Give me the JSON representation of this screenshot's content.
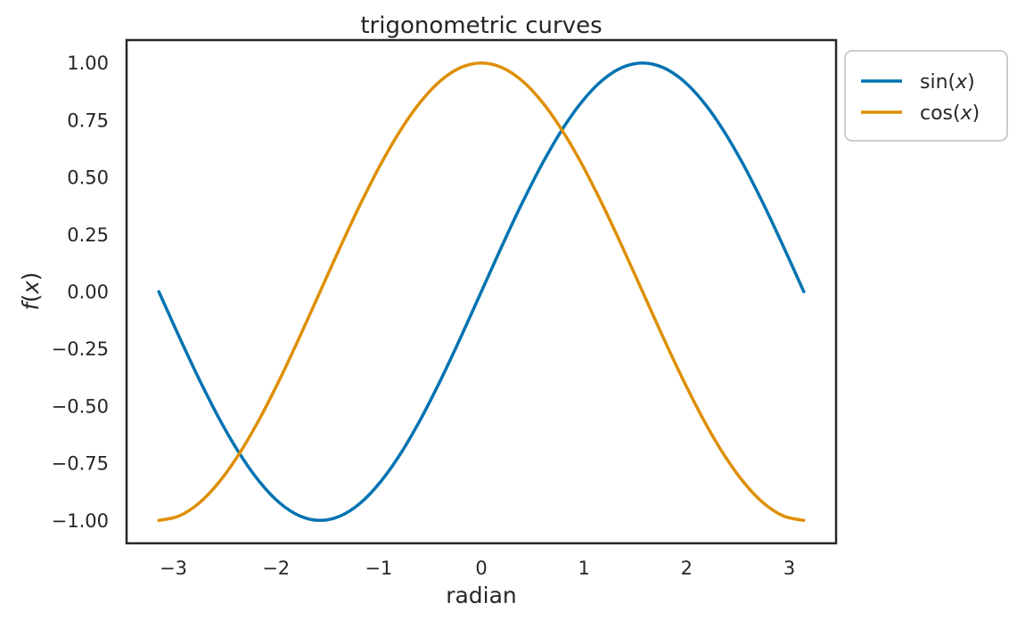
{
  "chart_data": {
    "type": "line",
    "title": "trigonometric curves",
    "xlabel": "radian",
    "ylabel": "f(x)",
    "xlim": [
      -3.456,
      3.456
    ],
    "ylim": [
      -1.1,
      1.1
    ],
    "grid": false,
    "xticks": {
      "values": [
        -3,
        -2,
        -1,
        0,
        1,
        2,
        3
      ],
      "labels": [
        "−3",
        "−2",
        "−1",
        "0",
        "1",
        "2",
        "3"
      ]
    },
    "yticks": {
      "values": [
        -1.0,
        -0.75,
        -0.5,
        -0.25,
        0.0,
        0.25,
        0.5,
        0.75,
        1.0
      ],
      "labels": [
        "−1.00",
        "−0.75",
        "−0.50",
        "−0.25",
        "0.00",
        "0.25",
        "0.50",
        "0.75",
        "1.00"
      ]
    },
    "legend": {
      "position": "upper-right-outside",
      "entries": [
        "sin(x)",
        "cos(x)"
      ]
    },
    "colors": {
      "background": "#ffffff",
      "text": "#262626",
      "spine": "#262626",
      "legend_border": "#cccccc"
    },
    "x": [
      -3.1416,
      -2.9452,
      -2.7489,
      -2.5525,
      -2.3562,
      -2.1598,
      -1.9635,
      -1.7671,
      -1.5708,
      -1.3744,
      -1.1781,
      -0.9817,
      -0.7854,
      -0.589,
      -0.3927,
      -0.1963,
      0,
      0.1963,
      0.3927,
      0.589,
      0.7854,
      0.9817,
      1.1781,
      1.3744,
      1.5708,
      1.7671,
      1.9635,
      2.1598,
      2.3562,
      2.5525,
      2.7489,
      2.9452,
      3.1416
    ],
    "series": [
      {
        "name": "sin(x)",
        "color": "#0173b2",
        "y": [
          0,
          -0.1951,
          -0.3827,
          -0.5556,
          -0.7071,
          -0.8315,
          -0.9239,
          -0.9808,
          -1,
          -0.9808,
          -0.9239,
          -0.8315,
          -0.7071,
          -0.5556,
          -0.3827,
          -0.1951,
          0,
          0.1951,
          0.3827,
          0.5556,
          0.7071,
          0.8315,
          0.9239,
          0.9808,
          1,
          0.9808,
          0.9239,
          0.8315,
          0.7071,
          0.5556,
          0.3827,
          0.1951,
          0
        ]
      },
      {
        "name": "cos(x)",
        "color": "#de8f05",
        "y": [
          -1,
          -0.9808,
          -0.9239,
          -0.8315,
          -0.7071,
          -0.5556,
          -0.3827,
          -0.1951,
          0,
          0.1951,
          0.3827,
          0.5556,
          0.7071,
          0.8315,
          0.9239,
          0.9808,
          1,
          0.9808,
          0.9239,
          0.8315,
          0.7071,
          0.5556,
          0.3827,
          0.1951,
          0,
          -0.1951,
          -0.3827,
          -0.5556,
          -0.7071,
          -0.8315,
          -0.9239,
          -0.9808,
          -1
        ]
      }
    ]
  }
}
